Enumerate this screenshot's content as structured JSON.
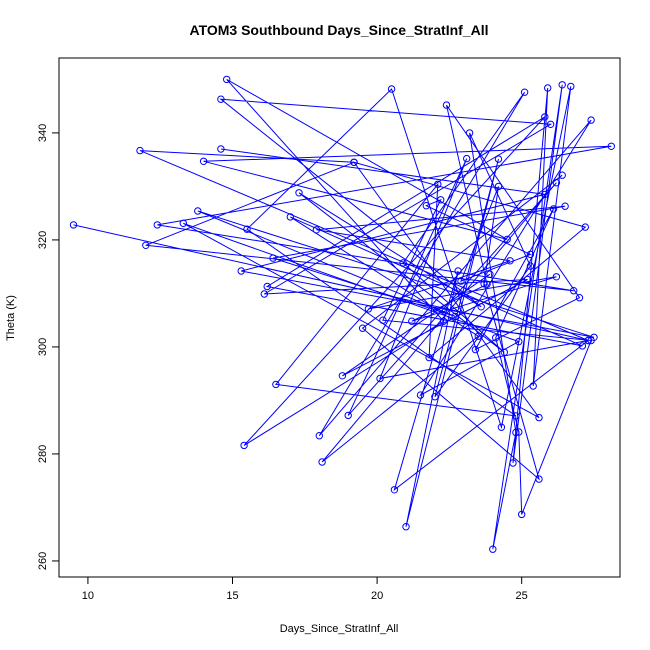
{
  "chart_data": {
    "type": "line",
    "title": "ATOM3 Southbound Days_Since_StratInf_All",
    "xlabel": "Days_Since_StratInf_All",
    "ylabel": "Theta (K)",
    "xlim": [
      9.0,
      28.4
    ],
    "ylim": [
      257.0,
      354.0
    ],
    "xticks": [
      10,
      15,
      20,
      25
    ],
    "yticks": [
      260,
      280,
      300,
      320,
      340
    ],
    "grid": false,
    "legend": "none",
    "marker": "open-circle",
    "color": "#0000ff",
    "series": [
      {
        "x": [
          9.5,
          27.3,
          11.8,
          19.2,
          12.0,
          26.8,
          12.4,
          28.1,
          14.0,
          24.5,
          14.8,
          22.3,
          15.4,
          25.8,
          16.2,
          27.1,
          17.0,
          23.5,
          18.1,
          26.2,
          19.0,
          23.1,
          20.1,
          27.3,
          20.6,
          22.8,
          21.0,
          24.2,
          22.0,
          25.3,
          23.2,
          24.8,
          24.0,
          26.4,
          24.7,
          25.9,
          25.4,
          26.7,
          24.3,
          20.5,
          15.5,
          24.8,
          16.5,
          22.1,
          21.8,
          27.2,
          19.2,
          25.6,
          13.3,
          24.9,
          21.5,
          27.4,
          18.0,
          25.1,
          20.9,
          24.4,
          17.3,
          23.6,
          14.6,
          26.0,
          16.1,
          25.2,
          18.8,
          23.9
        ],
        "y": [
          322.8,
          301.2,
          336.7,
          334.5,
          319.0,
          310.5,
          322.8,
          337.5,
          334.7,
          320.1,
          350.0,
          304.8,
          281.6,
          343.0,
          311.3,
          300.2,
          324.3,
          302.0,
          278.5,
          330.7,
          287.2,
          335.2,
          294.1,
          301.2,
          273.3,
          314.2,
          266.4,
          335.1,
          290.7,
          315.1,
          340.0,
          284.0,
          262.2,
          349.0,
          278.3,
          348.4,
          292.7,
          348.7,
          285.0,
          348.2,
          322.0,
          287.1,
          293.0,
          330.4,
          298.0,
          322.4,
          334.5,
          286.8,
          323.1,
          301.0,
          291.0,
          342.4,
          283.4,
          347.6,
          315.7,
          299.0,
          328.8,
          307.5,
          346.3,
          341.6,
          309.9,
          312.6,
          294.6,
          313.6
        ]
      },
      {
        "x": [
          14.6,
          25.8,
          15.3,
          27.5,
          13.8,
          22.7,
          16.4,
          26.5,
          17.9,
          24.6,
          19.7,
          26.2,
          21.2,
          23.8,
          22.4,
          27.0,
          23.4,
          26.1,
          24.1,
          24.9,
          25.0,
          27.4,
          20.2,
          22.2,
          21.7,
          25.3,
          22.9,
          24.2,
          23.7,
          25.6,
          19.5,
          26.4
        ],
        "y": [
          337.0,
          328.5,
          314.2,
          301.8,
          325.4,
          305.7,
          316.6,
          326.3,
          321.9,
          316.1,
          307.1,
          313.1,
          304.8,
          311.7,
          345.2,
          309.2,
          299.5,
          325.8,
          301.7,
          284.1,
          268.7,
          301.2,
          305.0,
          327.5,
          326.4,
          317.3,
          312.3,
          330.0,
          311.8,
          275.3,
          303.5,
          332.1
        ]
      }
    ]
  }
}
